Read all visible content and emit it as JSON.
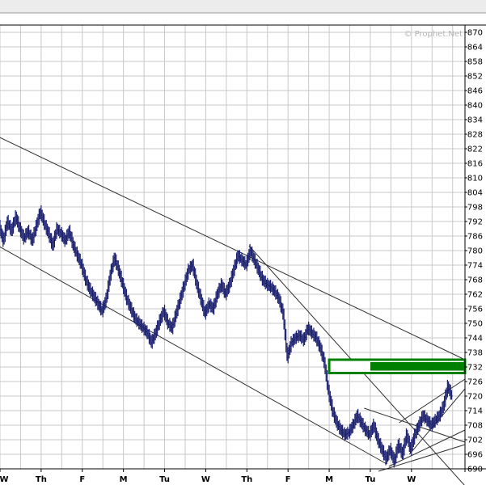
{
  "watermark": "© Prophet.Net",
  "colors": {
    "background": "#ffffff",
    "grid": "#c8c8c8",
    "bars": "#1a1f6e",
    "trendline": "#303030",
    "zone_fill": "#008000",
    "zone_border": "#008000",
    "top_band": "#d0d0d0"
  },
  "chart_data": {
    "type": "line",
    "title": "",
    "xlabel": "",
    "ylabel": "",
    "ylim": [
      690,
      873
    ],
    "grid": true,
    "y_ticks": [
      "870",
      "864",
      "858",
      "852",
      "846",
      "840",
      "834",
      "828",
      "822",
      "816",
      "810",
      "804",
      "798",
      "792",
      "786",
      "780",
      "774",
      "768",
      "762",
      "756",
      "750",
      "744",
      "738",
      "732",
      "726",
      "720",
      "714",
      "708",
      "702",
      "696",
      "690"
    ],
    "x_ticks": [
      "W",
      "Th",
      "F",
      "M",
      "Tu",
      "W",
      "Th",
      "F",
      "M",
      "Tu",
      "W"
    ],
    "x_tick_index": [
      0,
      1,
      2,
      3,
      4,
      5,
      6,
      7,
      8,
      9,
      10
    ],
    "session_count": 11.3,
    "series": [
      {
        "points": [
          [
            0.0,
            790
          ],
          [
            0.1,
            784
          ],
          [
            0.2,
            792
          ],
          [
            0.3,
            788
          ],
          [
            0.4,
            794
          ],
          [
            0.5,
            789
          ],
          [
            0.6,
            785
          ],
          [
            0.7,
            788
          ],
          [
            0.8,
            784
          ],
          [
            0.9,
            790
          ],
          [
            1.0,
            796
          ],
          [
            1.1,
            791
          ],
          [
            1.2,
            787
          ],
          [
            1.3,
            782
          ],
          [
            1.4,
            789
          ],
          [
            1.5,
            787
          ],
          [
            1.6,
            784
          ],
          [
            1.7,
            788
          ],
          [
            1.8,
            782
          ],
          [
            1.9,
            778
          ],
          [
            2.0,
            774
          ],
          [
            2.1,
            768
          ],
          [
            2.2,
            764
          ],
          [
            2.3,
            761
          ],
          [
            2.4,
            758
          ],
          [
            2.5,
            755
          ],
          [
            2.6,
            760
          ],
          [
            2.7,
            770
          ],
          [
            2.8,
            777
          ],
          [
            2.9,
            772
          ],
          [
            3.0,
            766
          ],
          [
            3.1,
            760
          ],
          [
            3.2,
            756
          ],
          [
            3.3,
            752
          ],
          [
            3.4,
            750
          ],
          [
            3.5,
            748
          ],
          [
            3.6,
            746
          ],
          [
            3.7,
            742
          ],
          [
            3.8,
            746
          ],
          [
            3.9,
            751
          ],
          [
            4.0,
            755
          ],
          [
            4.1,
            750
          ],
          [
            4.2,
            748
          ],
          [
            4.3,
            754
          ],
          [
            4.4,
            760
          ],
          [
            4.5,
            766
          ],
          [
            4.6,
            772
          ],
          [
            4.7,
            774
          ],
          [
            4.8,
            766
          ],
          [
            4.9,
            760
          ],
          [
            5.0,
            754
          ],
          [
            5.1,
            758
          ],
          [
            5.2,
            756
          ],
          [
            5.3,
            762
          ],
          [
            5.4,
            766
          ],
          [
            5.5,
            762
          ],
          [
            5.6,
            766
          ],
          [
            5.7,
            772
          ],
          [
            5.8,
            778
          ],
          [
            5.9,
            776
          ],
          [
            6.0,
            774
          ],
          [
            6.1,
            780
          ],
          [
            6.2,
            776
          ],
          [
            6.3,
            772
          ],
          [
            6.4,
            768
          ],
          [
            6.5,
            766
          ],
          [
            6.6,
            765
          ],
          [
            6.7,
            763
          ],
          [
            6.8,
            760
          ],
          [
            6.9,
            754
          ],
          [
            7.0,
            736
          ],
          [
            7.1,
            742
          ],
          [
            7.2,
            744
          ],
          [
            7.3,
            745
          ],
          [
            7.4,
            743
          ],
          [
            7.5,
            748
          ],
          [
            7.6,
            746
          ],
          [
            7.7,
            744
          ],
          [
            7.8,
            740
          ],
          [
            7.9,
            734
          ],
          [
            8.0,
            722
          ],
          [
            8.1,
            714
          ],
          [
            8.2,
            709
          ],
          [
            8.3,
            706
          ],
          [
            8.4,
            704
          ],
          [
            8.5,
            705
          ],
          [
            8.6,
            708
          ],
          [
            8.7,
            712
          ],
          [
            8.8,
            709
          ],
          [
            8.9,
            706
          ],
          [
            9.0,
            704
          ],
          [
            9.1,
            708
          ],
          [
            9.2,
            702
          ],
          [
            9.3,
            698
          ],
          [
            9.4,
            694
          ],
          [
            9.5,
            698
          ],
          [
            9.6,
            693
          ],
          [
            9.7,
            700
          ],
          [
            9.8,
            696
          ],
          [
            9.9,
            704
          ],
          [
            10.0,
            698
          ],
          [
            10.1,
            704
          ],
          [
            10.2,
            708
          ],
          [
            10.3,
            712
          ],
          [
            10.4,
            710
          ],
          [
            10.5,
            708
          ],
          [
            10.6,
            710
          ],
          [
            10.7,
            712
          ],
          [
            10.8,
            716
          ],
          [
            10.9,
            724
          ],
          [
            11.0,
            720
          ]
        ]
      }
    ],
    "trendlines": [
      [
        [
          -0.05,
          827
        ],
        [
          11.3,
          735
        ]
      ],
      [
        [
          -0.05,
          782
        ],
        [
          9.4,
          692
        ]
      ],
      [
        [
          6.05,
          782
        ],
        [
          11.3,
          683
        ]
      ],
      [
        [
          8.85,
          715
        ],
        [
          11.3,
          701
        ]
      ],
      [
        [
          9.7,
          709
        ],
        [
          11.3,
          727
        ]
      ],
      [
        [
          9.95,
          696
        ],
        [
          11.3,
          723
        ]
      ],
      [
        [
          9.45,
          691
        ],
        [
          11.3,
          706
        ]
      ],
      [
        [
          9.2,
          689
        ],
        [
          11.3,
          700
        ]
      ]
    ],
    "zones": [
      {
        "x_start": 8.0,
        "x_end": 11.3,
        "y_low": 729.5,
        "y_high": 735.0,
        "fill_from": 9.0
      }
    ]
  }
}
